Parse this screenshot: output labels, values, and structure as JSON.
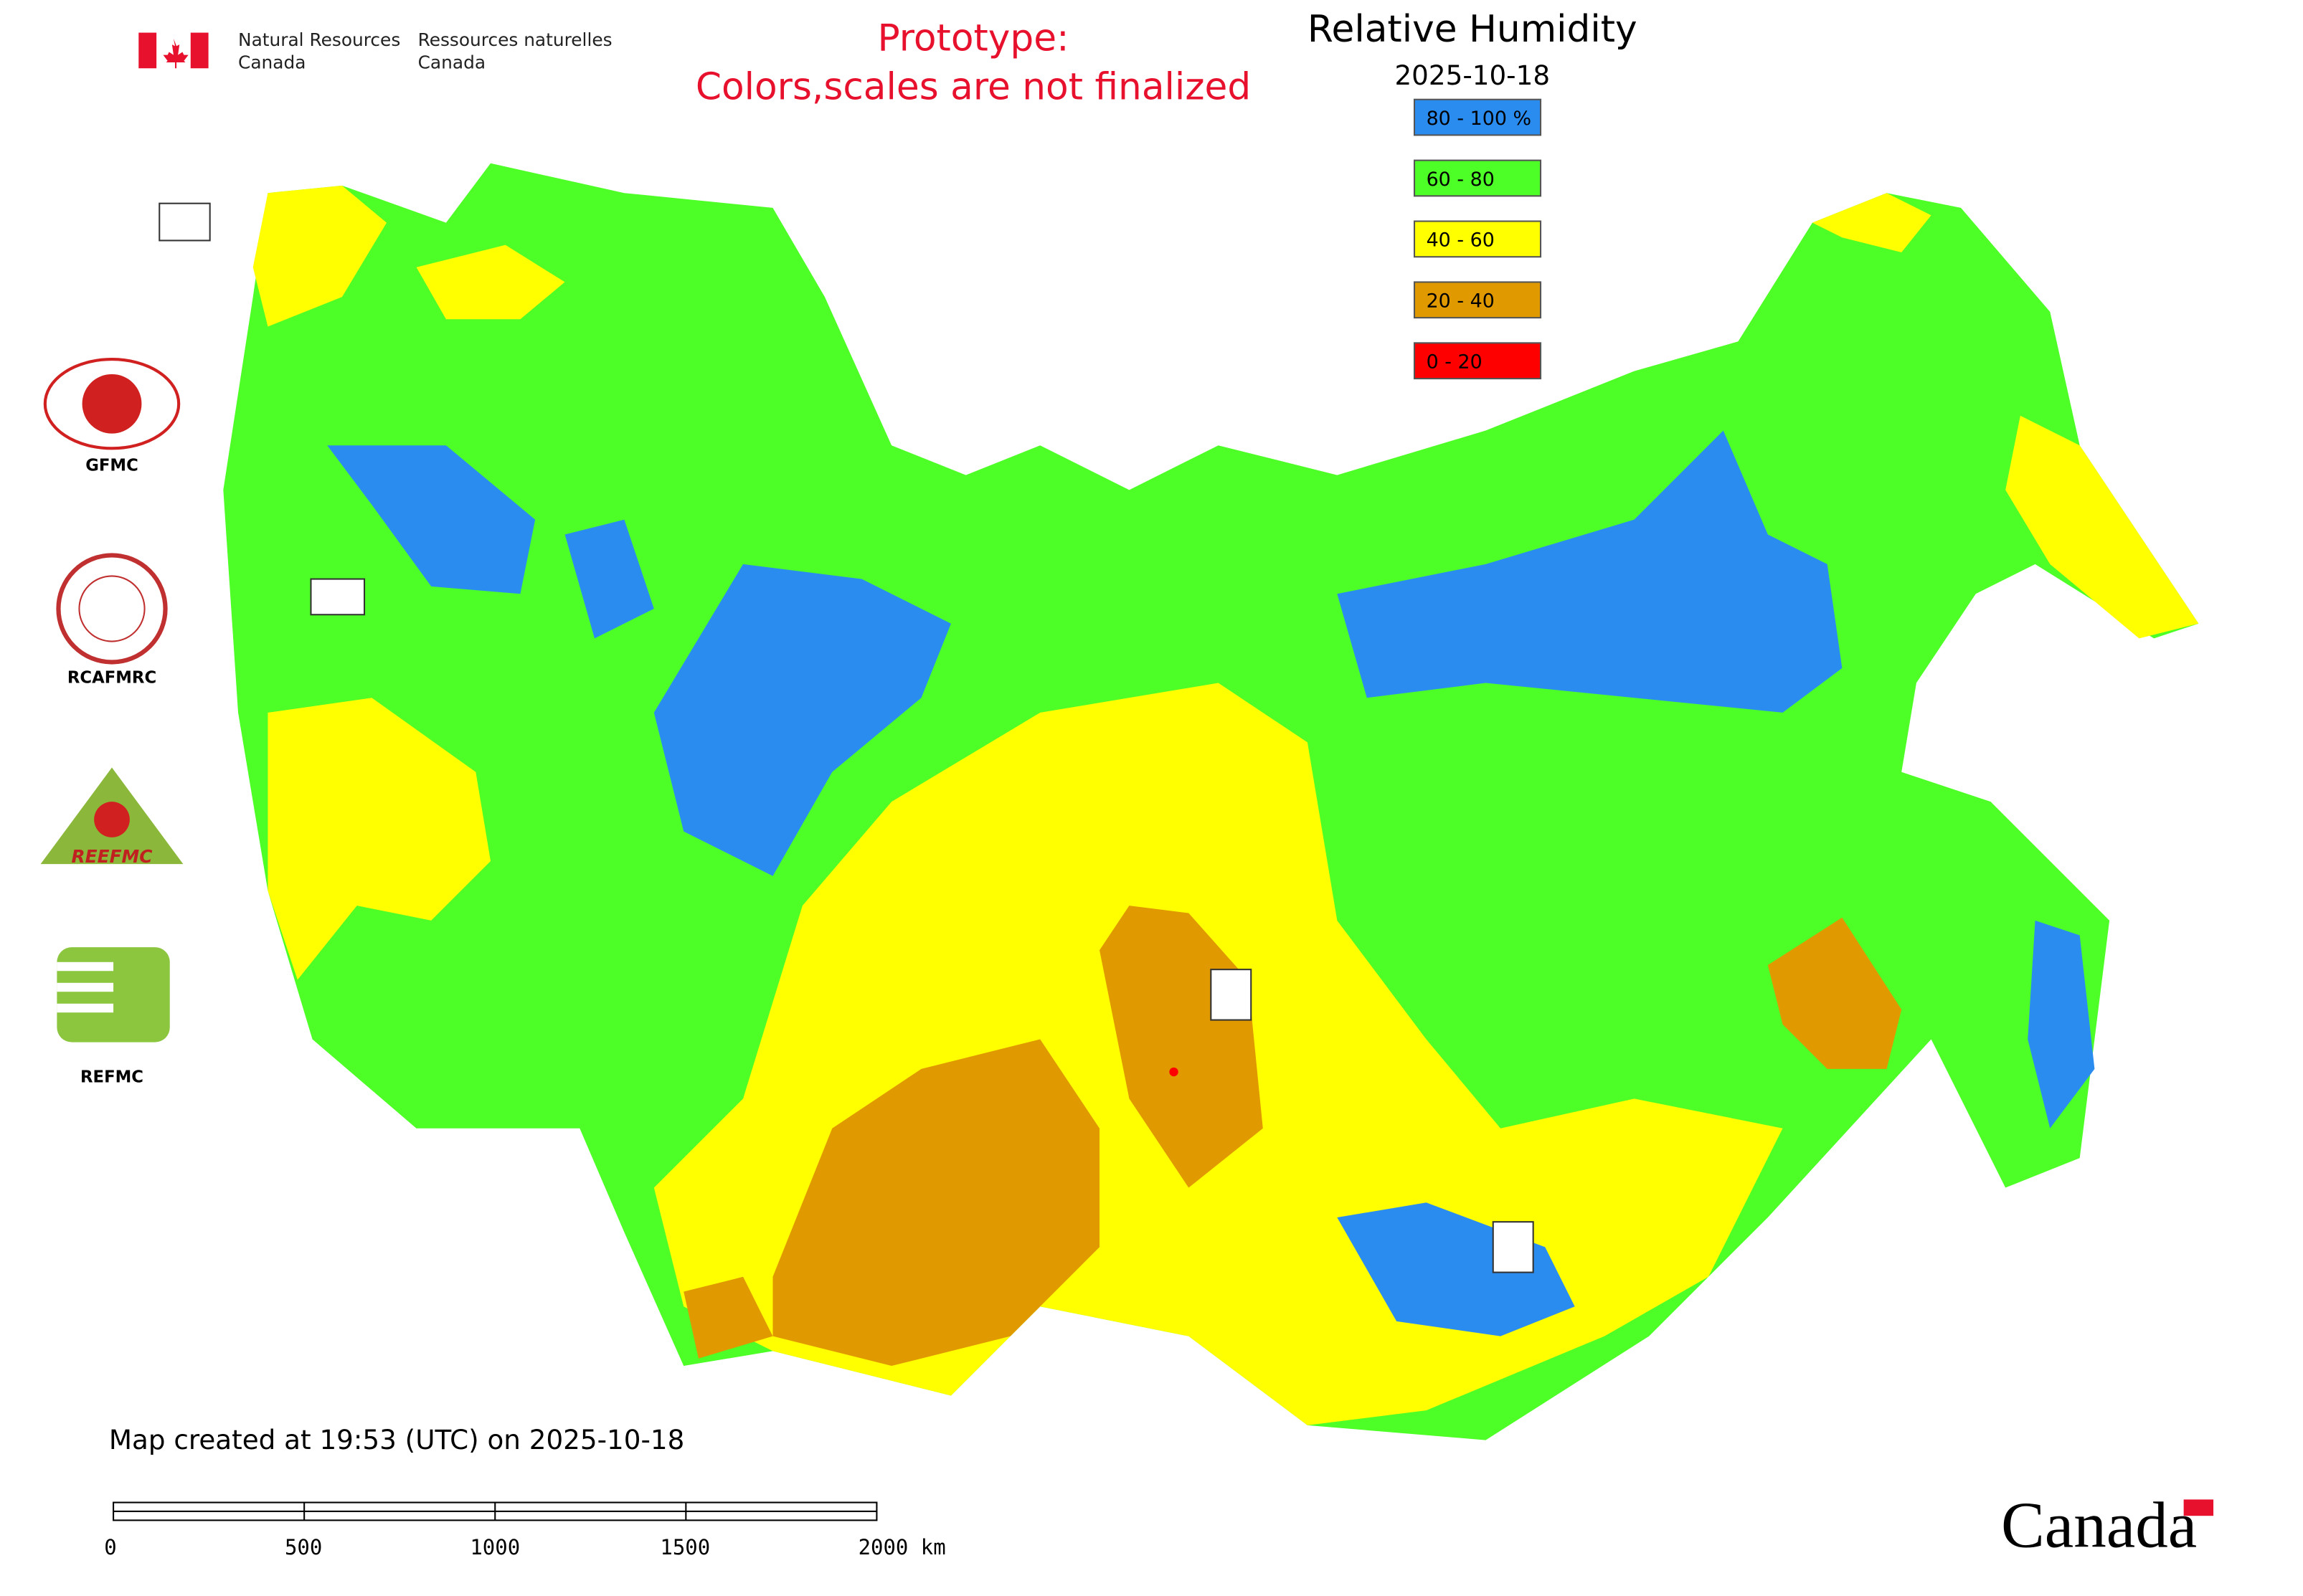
{
  "header": {
    "agency_en": [
      "Natural Resources",
      "Canada"
    ],
    "agency_fr": [
      "Ressources naturelles",
      "Canada"
    ]
  },
  "notice": [
    "Prototype:",
    "Colors,scales are not finalized"
  ],
  "legend": {
    "title": "Relative Humidity",
    "date": "2025-10-18",
    "items": [
      {
        "label": "80 - 100 %",
        "color": "#2b8cf0"
      },
      {
        "label": "60 - 80",
        "color": "#4dff26"
      },
      {
        "label": "40 - 60",
        "color": "#ffff00"
      },
      {
        "label": "20 - 40",
        "color": "#e09a00"
      },
      {
        "label": "0 - 20",
        "color": "#ff0000"
      }
    ]
  },
  "logos": [
    "GFMC",
    "RCAFMRC",
    "REEFMC",
    "REFMC"
  ],
  "footer": "Map created at 19:53 (UTC) on 2025-10-18",
  "scale_bar": {
    "labels": [
      "0",
      "500",
      "1000",
      "1500",
      "2000 km"
    ]
  },
  "wordmark": "Canada"
}
